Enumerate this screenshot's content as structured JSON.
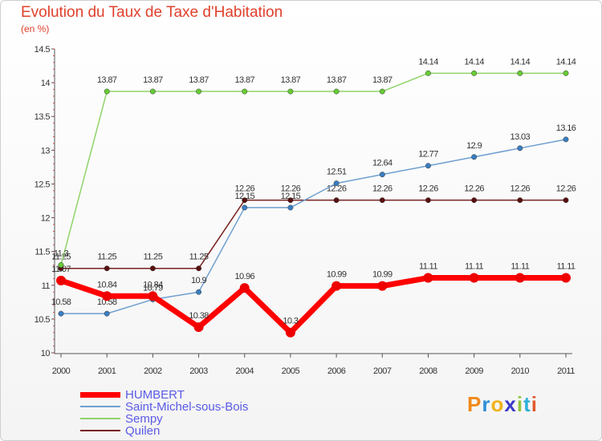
{
  "title": "Evolution du Taux de Taxe d'Habitation",
  "subtitle": "(en %)",
  "logo": "Proxiti",
  "chart_data": {
    "type": "line",
    "title": "Evolution du Taux de Taxe d'Habitation",
    "ylabel": "(en %)",
    "categories": [
      "2000",
      "2001",
      "2002",
      "2003",
      "2004",
      "2005",
      "2006",
      "2007",
      "2008",
      "2009",
      "2010",
      "2011"
    ],
    "ylim": [
      10,
      14.5
    ],
    "yticks": [
      "10",
      "10.5",
      "11",
      "11.5",
      "12",
      "12.5",
      "13",
      "13.5",
      "14",
      "14.5"
    ],
    "grid": false,
    "legend_position": "bottom-left",
    "series": [
      {
        "name": "Quilen",
        "color": "#7a2020",
        "marker_color": "#5a1010",
        "width": 1.5,
        "values": [
          11.25,
          11.25,
          11.25,
          11.25,
          12.26,
          12.26,
          12.26,
          12.26,
          12.26,
          12.26,
          12.26,
          12.26
        ],
        "labels": [
          "11.25",
          "11.25",
          "11.25",
          "11.25",
          "12.26",
          "12.26",
          "12.26",
          "12.26",
          "12.26",
          "12.26",
          "12.26",
          "12.26"
        ]
      },
      {
        "name": "Sempy",
        "color": "#8fd46a",
        "marker_color": "#66cc33",
        "width": 1.5,
        "values": [
          11.3,
          13.87,
          13.87,
          13.87,
          13.87,
          13.87,
          13.87,
          13.87,
          14.14,
          14.14,
          14.14,
          14.14
        ],
        "labels": [
          "11.3",
          "13.87",
          "13.87",
          "13.87",
          "13.87",
          "13.87",
          "13.87",
          "13.87",
          "14.14",
          "14.14",
          "14.14",
          "14.14"
        ]
      },
      {
        "name": "Saint-Michel-sous-Bois",
        "color": "#6f9fd0",
        "marker_color": "#3a7ec2",
        "width": 1.5,
        "values": [
          10.58,
          10.58,
          10.79,
          10.9,
          12.15,
          12.15,
          12.51,
          12.64,
          12.77,
          12.9,
          13.03,
          13.16
        ],
        "labels": [
          "10.58",
          "10.58",
          "10.79",
          "10.9",
          "12.15",
          "12.15",
          "12.51",
          "12.64",
          "12.77",
          "12.9",
          "13.03",
          "13.16"
        ]
      },
      {
        "name": "HUMBERT",
        "color": "#ff0000",
        "marker_color": "#ee0000",
        "width": 7,
        "values": [
          11.07,
          10.84,
          10.84,
          10.38,
          10.96,
          10.3,
          10.99,
          10.99,
          11.11,
          11.11,
          11.11,
          11.11
        ],
        "labels": [
          "11.07",
          "10.84",
          "10.84",
          "10.38",
          "10.96",
          "10.3",
          "10.99",
          "10.99",
          "11.11",
          "11.11",
          "11.11",
          "11.11"
        ]
      }
    ]
  },
  "legend": [
    {
      "name": "HUMBERT",
      "color": "#ff0000",
      "thickness": 7
    },
    {
      "name": "Saint-Michel-sous-Bois",
      "color": "#6f9fd0",
      "thickness": 2
    },
    {
      "name": "Sempy",
      "color": "#8fd46a",
      "thickness": 2
    },
    {
      "name": "Quilen",
      "color": "#7a2020",
      "thickness": 2
    }
  ]
}
